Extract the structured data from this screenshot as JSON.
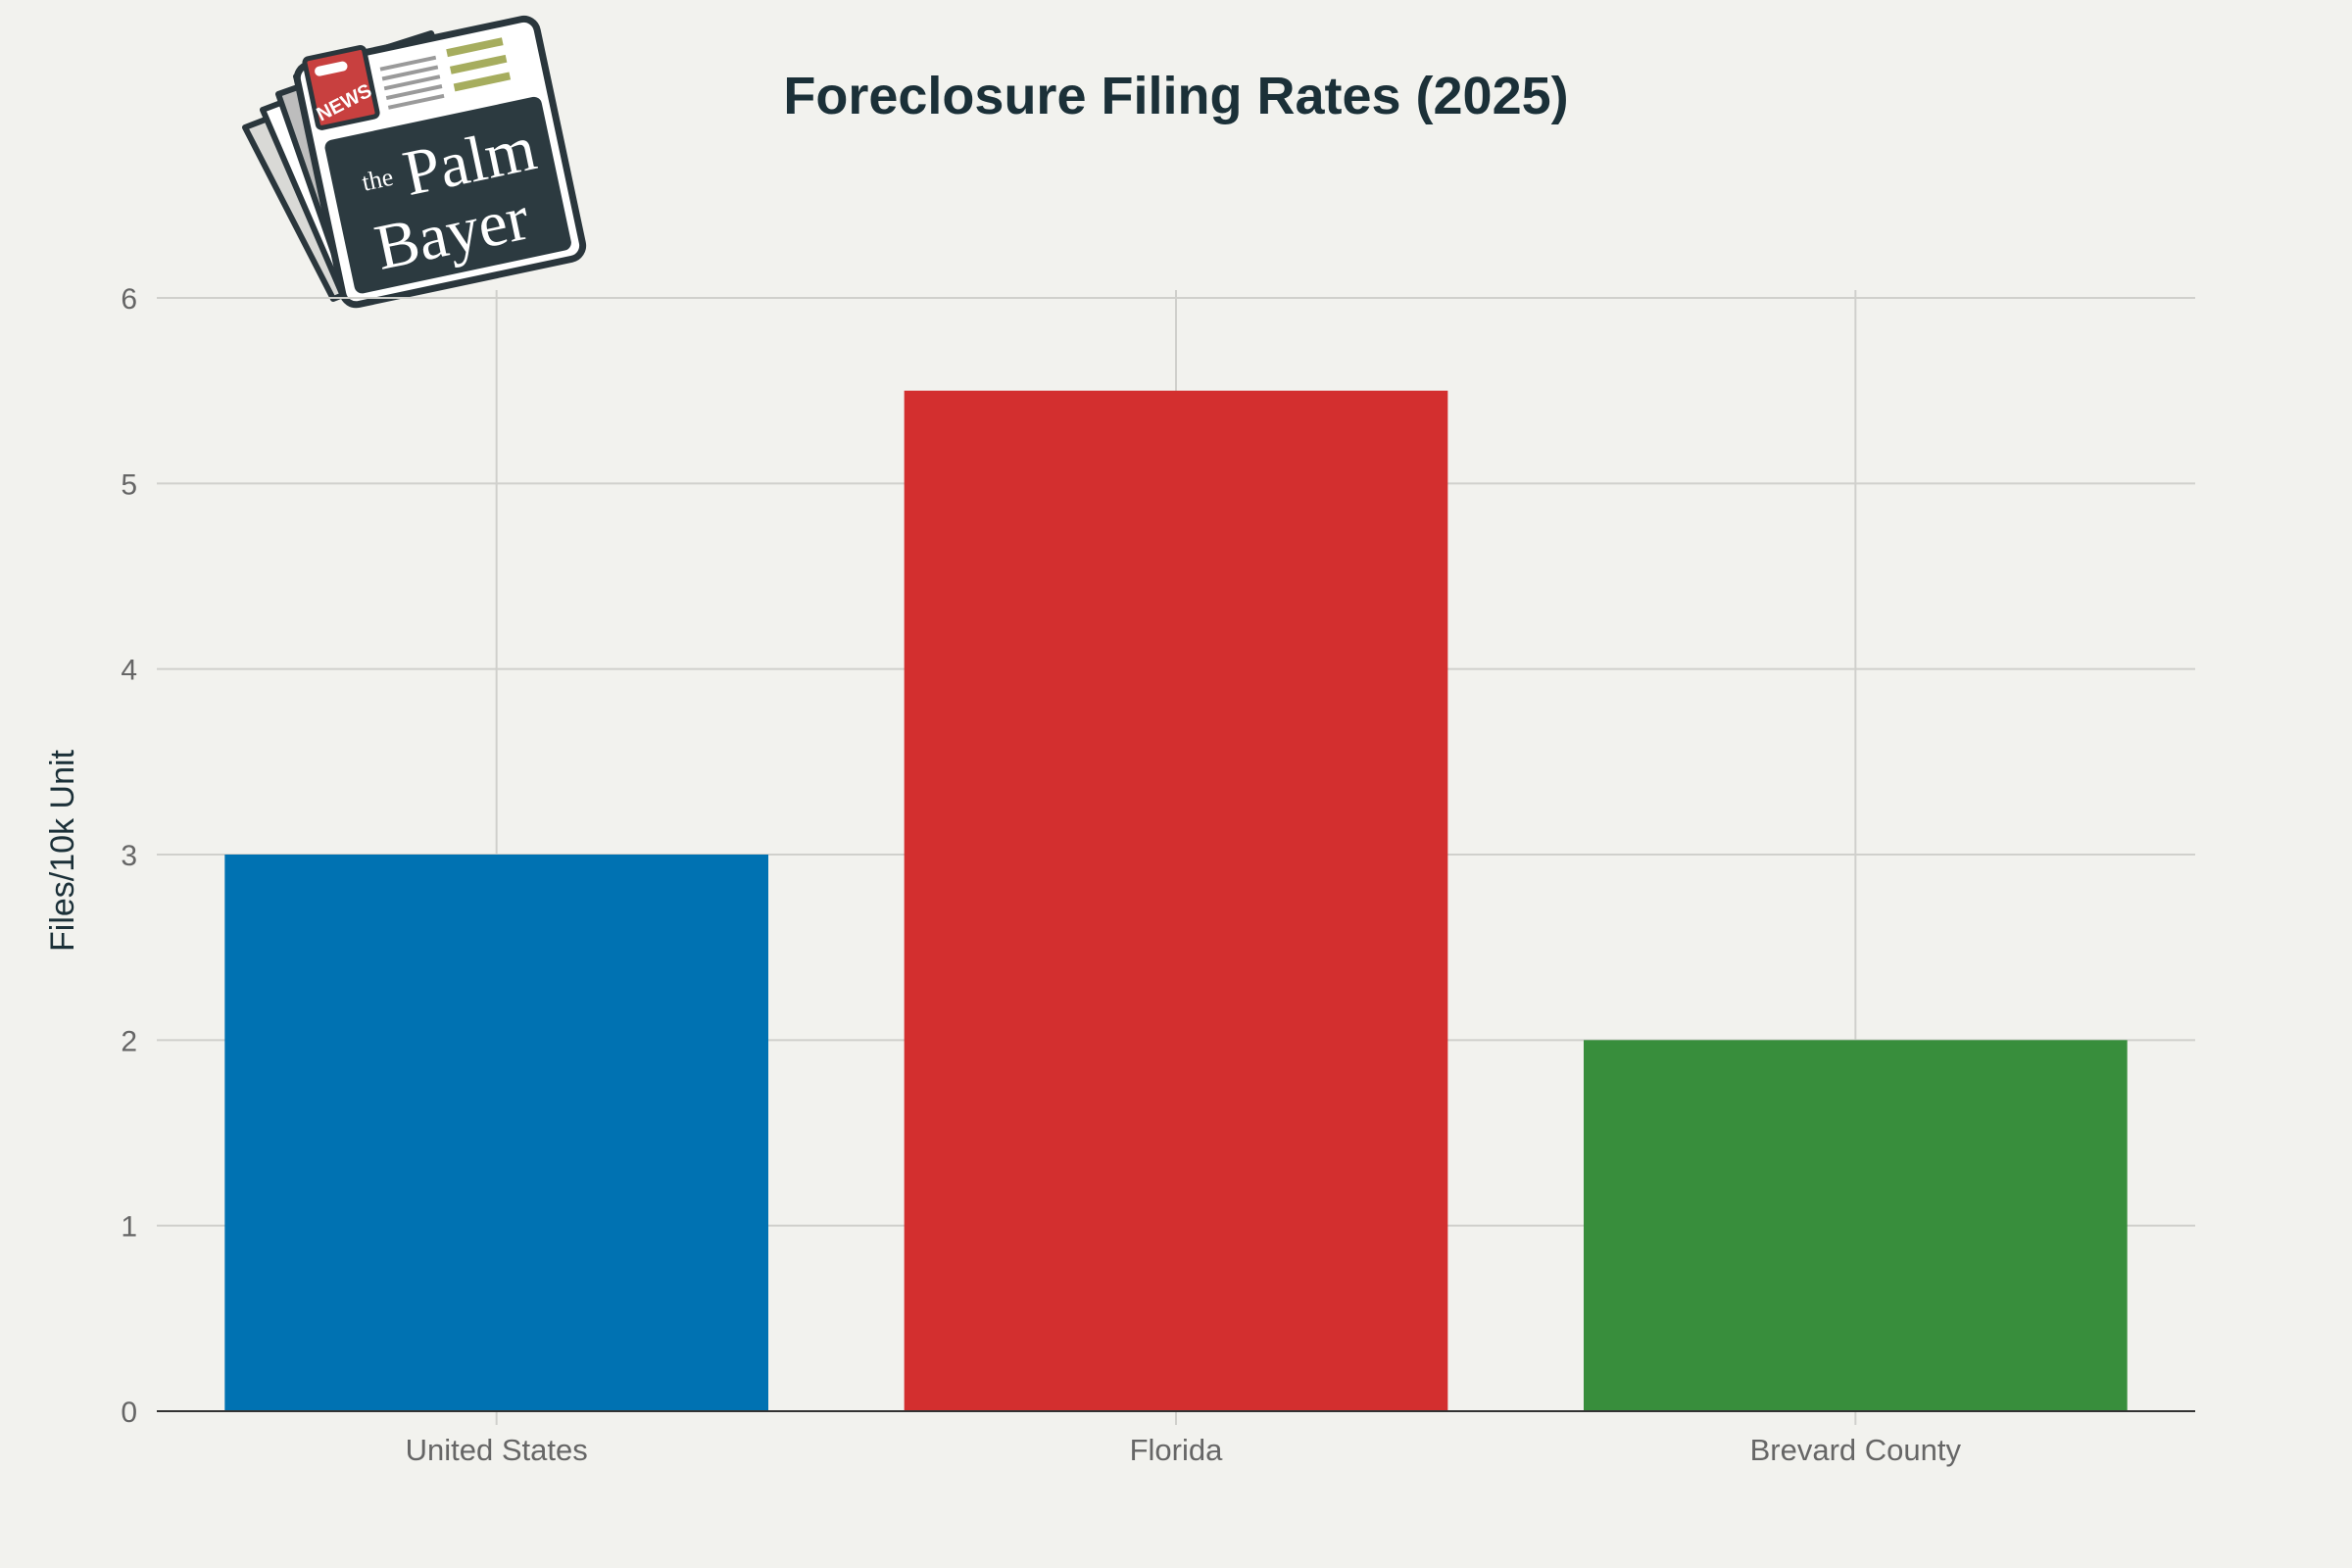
{
  "logo": {
    "badge_text": "NEWS",
    "line1_small": "the",
    "line1": "Palm",
    "line2": "Bayer"
  },
  "chart_data": {
    "type": "bar",
    "title": "Foreclosure Filing Rates (2025)",
    "xlabel": "",
    "ylabel": "Files/10k Unit",
    "categories": [
      "United States",
      "Florida",
      "Brevard County"
    ],
    "values": [
      3.0,
      5.5,
      2.0
    ],
    "bar_colors": [
      "#0072b2",
      "#d32f2f",
      "#388e3c"
    ],
    "ylim": [
      0,
      6
    ],
    "yticks": [
      0,
      1,
      2,
      3,
      4,
      5,
      6
    ],
    "grid": true,
    "legend": "none"
  },
  "colors": {
    "background": "#f2f2ee",
    "title": "#1b3038",
    "grid": "#d0d0cc",
    "tick_text": "#666666"
  }
}
